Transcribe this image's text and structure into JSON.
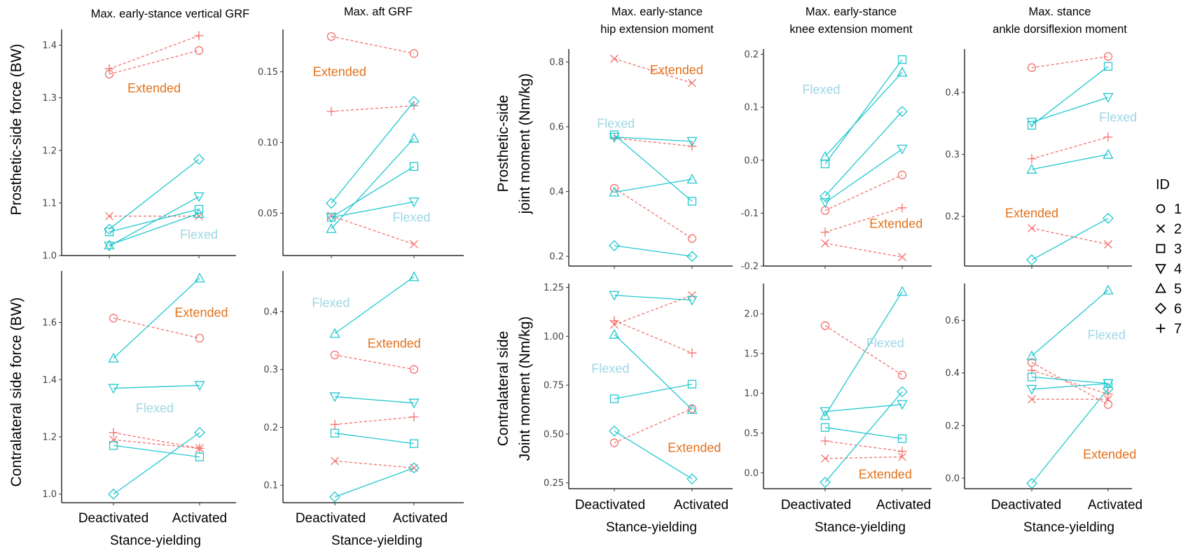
{
  "colors": {
    "flexed": "#22C8CF",
    "extended": "#F2706C",
    "flexed_label": "#9DD7E6",
    "extended_label": "#E3711B"
  },
  "legend": {
    "title": "ID",
    "items": [
      {
        "id": "1",
        "shape": "circle"
      },
      {
        "id": "2",
        "shape": "x"
      },
      {
        "id": "3",
        "shape": "square"
      },
      {
        "id": "4",
        "shape": "triangle-down"
      },
      {
        "id": "5",
        "shape": "triangle-up"
      },
      {
        "id": "6",
        "shape": "diamond"
      },
      {
        "id": "7",
        "shape": "plus"
      }
    ]
  },
  "row_labels": {
    "left_top": "Prosthetic-side force (BW)",
    "left_bottom": "Contralateral side force (BW)",
    "right_top": [
      "Prosthetic-side",
      "joint moment (Nm/kg)"
    ],
    "right_bottom": [
      "Contralateral side",
      "Joint moment (Nm/kg)"
    ]
  },
  "column_titles": [
    [
      "Max. early-stance vertical GRF"
    ],
    [
      "Max. aft GRF"
    ],
    [
      "Max. early-stance",
      "hip extension moment"
    ],
    [
      "Max. early-stance",
      "knee extension moment"
    ],
    [
      "Max. stance",
      "ankle dorsiflexion moment"
    ]
  ],
  "x_tick_labels": [
    "Deactivated",
    "Activated"
  ],
  "x_axis_label": "Stance-yielding",
  "chart_data": [
    {
      "type": "line",
      "panel": "vGRF-prosthetic",
      "ylim": [
        1.0,
        1.43
      ],
      "yticks": [
        "1.0",
        "1.1",
        "1.2",
        "1.3",
        "1.4"
      ],
      "yticks_val": [
        1.0,
        1.1,
        1.2,
        1.3,
        1.4
      ],
      "series": [
        {
          "id": "1",
          "group": "Extended",
          "values": [
            1.345,
            1.39
          ]
        },
        {
          "id": "7",
          "group": "Extended",
          "values": [
            1.355,
            1.418
          ]
        },
        {
          "id": "2",
          "group": "Extended",
          "values": [
            1.075,
            1.075
          ]
        },
        {
          "id": "6",
          "group": "Flexed",
          "values": [
            1.05,
            1.183
          ]
        },
        {
          "id": "4",
          "group": "Flexed",
          "values": [
            1.018,
            1.112
          ]
        },
        {
          "id": "3",
          "group": "Flexed",
          "values": [
            1.045,
            1.088
          ]
        },
        {
          "id": "5",
          "group": "Flexed",
          "values": [
            1.02,
            1.08
          ]
        }
      ],
      "annotations": [
        {
          "text": "Extended",
          "group": "Extended",
          "x": 1.5,
          "y": 1.318
        },
        {
          "text": "Flexed",
          "group": "Flexed",
          "x": 2.0,
          "y": 1.04
        }
      ]
    },
    {
      "type": "line",
      "panel": "aft-prosthetic",
      "ylim": [
        0.02,
        0.18
      ],
      "yticks": [
        "0.05",
        "0.10",
        "0.15"
      ],
      "yticks_val": [
        0.05,
        0.1,
        0.15
      ],
      "series": [
        {
          "id": "1",
          "group": "Extended",
          "values": [
            0.175,
            0.163
          ]
        },
        {
          "id": "7",
          "group": "Extended",
          "values": [
            0.122,
            0.126
          ]
        },
        {
          "id": "2",
          "group": "Extended",
          "values": [
            0.048,
            0.028
          ]
        },
        {
          "id": "6",
          "group": "Flexed",
          "values": [
            0.057,
            0.129
          ]
        },
        {
          "id": "5",
          "group": "Flexed",
          "values": [
            0.039,
            0.103
          ]
        },
        {
          "id": "3",
          "group": "Flexed",
          "values": [
            0.047,
            0.083
          ]
        },
        {
          "id": "4",
          "group": "Flexed",
          "values": [
            0.047,
            0.058
          ]
        }
      ],
      "annotations": [
        {
          "text": "Extended",
          "group": "Extended",
          "x": 1.1,
          "y": 0.15
        },
        {
          "text": "Flexed",
          "group": "Flexed",
          "x": 1.97,
          "y": 0.047
        }
      ]
    },
    {
      "type": "line",
      "panel": "vGRF-contralateral",
      "ylim": [
        0.97,
        1.78
      ],
      "yticks": [
        "1.0",
        "1.2",
        "1.4",
        "1.6"
      ],
      "yticks_val": [
        1.0,
        1.2,
        1.4,
        1.6
      ],
      "series": [
        {
          "id": "1",
          "group": "Extended",
          "values": [
            1.615,
            1.545
          ]
        },
        {
          "id": "7",
          "group": "Extended",
          "values": [
            1.215,
            1.16
          ]
        },
        {
          "id": "2",
          "group": "Extended",
          "values": [
            1.19,
            1.16
          ]
        },
        {
          "id": "5",
          "group": "Flexed",
          "values": [
            1.475,
            1.755
          ]
        },
        {
          "id": "4",
          "group": "Flexed",
          "values": [
            1.37,
            1.38
          ]
        },
        {
          "id": "3",
          "group": "Flexed",
          "values": [
            1.17,
            1.13
          ]
        },
        {
          "id": "6",
          "group": "Flexed",
          "values": [
            1.0,
            1.215
          ]
        }
      ],
      "annotations": [
        {
          "text": "Extended",
          "group": "Extended",
          "x": 2.02,
          "y": 1.635
        },
        {
          "text": "Flexed",
          "group": "Flexed",
          "x": 1.48,
          "y": 1.3
        }
      ]
    },
    {
      "type": "line",
      "panel": "aft-contralateral",
      "ylim": [
        0.07,
        0.47
      ],
      "yticks": [
        "0.1",
        "0.2",
        "0.3",
        "0.4"
      ],
      "yticks_val": [
        0.1,
        0.2,
        0.3,
        0.4
      ],
      "series": [
        {
          "id": "1",
          "group": "Extended",
          "values": [
            0.325,
            0.3
          ]
        },
        {
          "id": "7",
          "group": "Extended",
          "values": [
            0.205,
            0.218
          ]
        },
        {
          "id": "2",
          "group": "Extended",
          "values": [
            0.142,
            0.13
          ]
        },
        {
          "id": "5",
          "group": "Flexed",
          "values": [
            0.362,
            0.46
          ]
        },
        {
          "id": "4",
          "group": "Flexed",
          "values": [
            0.253,
            0.242
          ]
        },
        {
          "id": "3",
          "group": "Flexed",
          "values": [
            0.19,
            0.172
          ]
        },
        {
          "id": "6",
          "group": "Flexed",
          "values": [
            0.08,
            0.13
          ]
        }
      ],
      "annotations": [
        {
          "text": "Flexed",
          "group": "Flexed",
          "x": 0.95,
          "y": 0.415
        },
        {
          "text": "Extended",
          "group": "Extended",
          "x": 1.75,
          "y": 0.345
        }
      ]
    },
    {
      "type": "line",
      "panel": "hip-prosthetic",
      "ylim": [
        0.17,
        0.84
      ],
      "yticks": [
        "0.2",
        "0.4",
        "0.6",
        "0.8"
      ],
      "yticks_val": [
        0.2,
        0.4,
        0.6,
        0.8
      ],
      "series": [
        {
          "id": "2",
          "group": "Extended",
          "values": [
            0.81,
            0.735
          ]
        },
        {
          "id": "7",
          "group": "Extended",
          "values": [
            0.565,
            0.54
          ]
        },
        {
          "id": "1",
          "group": "Extended",
          "values": [
            0.41,
            0.255
          ]
        },
        {
          "id": "3",
          "group": "Flexed",
          "values": [
            0.575,
            0.37
          ]
        },
        {
          "id": "4",
          "group": "Flexed",
          "values": [
            0.568,
            0.555
          ]
        },
        {
          "id": "5",
          "group": "Flexed",
          "values": [
            0.398,
            0.438
          ]
        },
        {
          "id": "6",
          "group": "Flexed",
          "values": [
            0.233,
            0.2
          ]
        }
      ],
      "annotations": [
        {
          "text": "Extended",
          "group": "Extended",
          "x": 1.8,
          "y": 0.775
        },
        {
          "text": "Flexed",
          "group": "Flexed",
          "x": 1.02,
          "y": 0.61
        }
      ]
    },
    {
      "type": "line",
      "panel": "knee-prosthetic",
      "ylim": [
        -0.2,
        0.21
      ],
      "yticks": [
        "-0.2",
        "-0.1",
        "0.0",
        "0.1",
        "0.2"
      ],
      "yticks_val": [
        -0.2,
        -0.1,
        0.0,
        0.1,
        0.2
      ],
      "series": [
        {
          "id": "1",
          "group": "Extended",
          "values": [
            -0.095,
            -0.028
          ]
        },
        {
          "id": "7",
          "group": "Extended",
          "values": [
            -0.136,
            -0.09
          ]
        },
        {
          "id": "2",
          "group": "Extended",
          "values": [
            -0.157,
            -0.183
          ]
        },
        {
          "id": "3",
          "group": "Flexed",
          "values": [
            -0.007,
            0.19
          ]
        },
        {
          "id": "5",
          "group": "Flexed",
          "values": [
            0.007,
            0.166
          ]
        },
        {
          "id": "6",
          "group": "Flexed",
          "values": [
            -0.068,
            0.092
          ]
        },
        {
          "id": "4",
          "group": "Flexed",
          "values": [
            -0.08,
            0.021
          ]
        }
      ],
      "annotations": [
        {
          "text": "Flexed",
          "group": "Flexed",
          "x": 0.95,
          "y": 0.133
        },
        {
          "text": "Extended",
          "group": "Extended",
          "x": 1.92,
          "y": -0.12
        }
      ]
    },
    {
      "type": "line",
      "panel": "ankle-prosthetic",
      "ylim": [
        0.12,
        0.47
      ],
      "yticks": [
        "0.2",
        "0.3",
        "0.4"
      ],
      "yticks_val": [
        0.2,
        0.3,
        0.4
      ],
      "series": [
        {
          "id": "1",
          "group": "Extended",
          "values": [
            0.44,
            0.458
          ]
        },
        {
          "id": "7",
          "group": "Extended",
          "values": [
            0.293,
            0.328
          ]
        },
        {
          "id": "2",
          "group": "Extended",
          "values": [
            0.181,
            0.155
          ]
        },
        {
          "id": "3",
          "group": "Flexed",
          "values": [
            0.347,
            0.442
          ]
        },
        {
          "id": "4",
          "group": "Flexed",
          "values": [
            0.352,
            0.392
          ]
        },
        {
          "id": "5",
          "group": "Flexed",
          "values": [
            0.276,
            0.3
          ]
        },
        {
          "id": "6",
          "group": "Flexed",
          "values": [
            0.13,
            0.197
          ]
        }
      ],
      "annotations": [
        {
          "text": "Flexed",
          "group": "Flexed",
          "x": 2.13,
          "y": 0.36
        },
        {
          "text": "Extended",
          "group": "Extended",
          "x": 1.0,
          "y": 0.205
        }
      ]
    },
    {
      "type": "line",
      "panel": "hip-contralateral",
      "ylim": [
        0.22,
        1.27
      ],
      "yticks": [
        "0.25",
        "0.50",
        "0.75",
        "1.00",
        "1.25"
      ],
      "yticks_val": [
        0.25,
        0.5,
        0.75,
        1.0,
        1.25
      ],
      "series": [
        {
          "id": "2",
          "group": "Extended",
          "values": [
            1.06,
            1.21
          ]
        },
        {
          "id": "7",
          "group": "Extended",
          "values": [
            1.08,
            0.915
          ]
        },
        {
          "id": "1",
          "group": "Extended",
          "values": [
            0.455,
            0.63
          ]
        },
        {
          "id": "4",
          "group": "Flexed",
          "values": [
            1.21,
            1.185
          ]
        },
        {
          "id": "5",
          "group": "Flexed",
          "values": [
            1.01,
            0.625
          ]
        },
        {
          "id": "3",
          "group": "Flexed",
          "values": [
            0.68,
            0.755
          ]
        },
        {
          "id": "6",
          "group": "Flexed",
          "values": [
            0.515,
            0.27
          ]
        }
      ],
      "annotations": [
        {
          "text": "Flexed",
          "group": "Flexed",
          "x": 0.95,
          "y": 0.835
        },
        {
          "text": "Extended",
          "group": "Extended",
          "x": 2.03,
          "y": 0.43
        }
      ]
    },
    {
      "type": "line",
      "panel": "knee-contralateral",
      "ylim": [
        -0.2,
        2.38
      ],
      "yticks": [
        "0.0",
        "0.5",
        "1.0",
        "1.5",
        "2.0"
      ],
      "yticks_val": [
        0.0,
        0.5,
        1.0,
        1.5,
        2.0
      ],
      "series": [
        {
          "id": "1",
          "group": "Extended",
          "values": [
            1.85,
            1.23
          ]
        },
        {
          "id": "7",
          "group": "Extended",
          "values": [
            0.4,
            0.27
          ]
        },
        {
          "id": "2",
          "group": "Extended",
          "values": [
            0.18,
            0.2
          ]
        },
        {
          "id": "5",
          "group": "Flexed",
          "values": [
            0.72,
            2.28
          ]
        },
        {
          "id": "4",
          "group": "Flexed",
          "values": [
            0.77,
            0.86
          ]
        },
        {
          "id": "3",
          "group": "Flexed",
          "values": [
            0.57,
            0.43
          ]
        },
        {
          "id": "6",
          "group": "Flexed",
          "values": [
            -0.12,
            1.02
          ]
        }
      ],
      "annotations": [
        {
          "text": "Flexed",
          "group": "Flexed",
          "x": 1.78,
          "y": 1.63
        },
        {
          "text": "Extended",
          "group": "Extended",
          "x": 1.78,
          "y": -0.02
        }
      ]
    },
    {
      "type": "line",
      "panel": "ankle-contralateral",
      "ylim": [
        -0.04,
        0.74
      ],
      "yticks": [
        "0.0",
        "0.2",
        "0.4",
        "0.6"
      ],
      "yticks_val": [
        0.0,
        0.2,
        0.4,
        0.6
      ],
      "series": [
        {
          "id": "1",
          "group": "Extended",
          "values": [
            0.44,
            0.28
          ]
        },
        {
          "id": "7",
          "group": "Extended",
          "values": [
            0.41,
            0.32
          ]
        },
        {
          "id": "2",
          "group": "Extended",
          "values": [
            0.3,
            0.3
          ]
        },
        {
          "id": "5",
          "group": "Flexed",
          "values": [
            0.465,
            0.715
          ]
        },
        {
          "id": "3",
          "group": "Flexed",
          "values": [
            0.385,
            0.36
          ]
        },
        {
          "id": "4",
          "group": "Flexed",
          "values": [
            0.338,
            0.36
          ]
        },
        {
          "id": "6",
          "group": "Flexed",
          "values": [
            -0.02,
            0.34
          ]
        }
      ],
      "annotations": [
        {
          "text": "Flexed",
          "group": "Flexed",
          "x": 1.98,
          "y": 0.545
        },
        {
          "text": "Extended",
          "group": "Extended",
          "x": 2.02,
          "y": 0.09
        }
      ]
    }
  ]
}
